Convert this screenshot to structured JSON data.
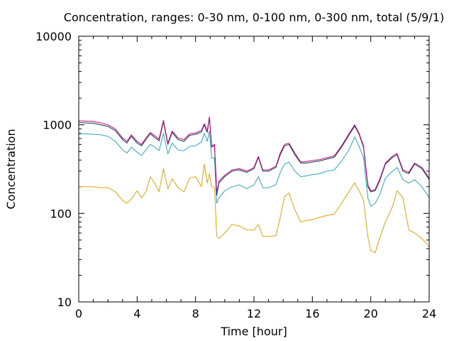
{
  "chart_data": {
    "type": "line",
    "title": "Concentration, ranges: 0-30 nm, 0-100 nm, 0-300 nm, total (5/9/1)",
    "xlabel": "Time [hour]",
    "ylabel": "Concentration",
    "xlim": [
      0,
      24
    ],
    "ylim": [
      10,
      10000
    ],
    "yscale": "log",
    "grid": false,
    "xticks": [
      "0",
      "4",
      "8",
      "12",
      "16",
      "20",
      "24"
    ],
    "yticks": [
      "10",
      "100",
      "1000",
      "10000"
    ],
    "colors": {
      "range_0_30": "#e5a00d",
      "range_0_100": "#2ca5c8",
      "range_0_300": "#0b3b4f",
      "total": "#c8007c",
      "axis": "#000000"
    },
    "series": [
      {
        "key": "range_0_30",
        "color": "#e5a00d",
        "x": [
          0,
          0.5,
          1,
          1.5,
          2,
          2.5,
          3,
          3.3,
          3.6,
          4,
          4.3,
          4.6,
          4.9,
          5.2,
          5.5,
          5.8,
          6.1,
          6.4,
          6.8,
          7.2,
          7.6,
          8,
          8.4,
          8.6,
          8.8,
          8.95,
          9.1,
          9.3,
          9.45,
          9.6,
          10,
          10.5,
          11,
          11.5,
          12,
          12.3,
          12.6,
          13,
          13.5,
          13.8,
          14.1,
          14.4,
          14.8,
          15.2,
          15.6,
          16,
          16.5,
          17,
          17.5,
          18,
          18.5,
          18.9,
          19.2,
          19.5,
          19.8,
          20,
          20.3,
          20.6,
          21,
          21.5,
          21.8,
          22.2,
          22.6,
          23,
          23.5,
          24
        ],
        "y": [
          200,
          200,
          200,
          195,
          195,
          175,
          140,
          130,
          145,
          180,
          150,
          175,
          260,
          220,
          175,
          320,
          190,
          245,
          195,
          175,
          250,
          260,
          200,
          360,
          220,
          280,
          200,
          195,
          55,
          52,
          60,
          75,
          72,
          65,
          65,
          75,
          55,
          55,
          56,
          90,
          155,
          170,
          110,
          80,
          83,
          85,
          90,
          95,
          98,
          130,
          175,
          222,
          180,
          140,
          55,
          38,
          36,
          52,
          80,
          120,
          180,
          150,
          65,
          60,
          52,
          42
        ]
      },
      {
        "key": "range_0_100",
        "color": "#2ca5c8",
        "x": [
          0,
          0.5,
          1,
          1.5,
          2,
          2.5,
          3,
          3.3,
          3.6,
          4,
          4.3,
          4.6,
          4.9,
          5.2,
          5.5,
          5.8,
          6.1,
          6.4,
          6.8,
          7.2,
          7.6,
          8,
          8.4,
          8.6,
          8.8,
          8.95,
          9.1,
          9.3,
          9.45,
          9.6,
          10,
          10.5,
          11,
          11.5,
          12,
          12.3,
          12.6,
          13,
          13.5,
          13.8,
          14.1,
          14.4,
          14.8,
          15.2,
          15.6,
          16,
          16.5,
          17,
          17.5,
          18,
          18.5,
          18.9,
          19.2,
          19.5,
          19.8,
          20,
          20.3,
          20.6,
          21,
          21.5,
          21.8,
          22.2,
          22.6,
          23,
          23.5,
          24
        ],
        "y": [
          790,
          790,
          780,
          770,
          740,
          650,
          520,
          480,
          560,
          490,
          450,
          520,
          600,
          560,
          510,
          800,
          470,
          620,
          520,
          510,
          570,
          580,
          640,
          800,
          650,
          850,
          420,
          420,
          130,
          150,
          180,
          200,
          210,
          190,
          210,
          260,
          195,
          195,
          210,
          290,
          360,
          380,
          300,
          260,
          265,
          275,
          280,
          300,
          310,
          390,
          520,
          730,
          570,
          430,
          150,
          120,
          130,
          160,
          250,
          300,
          330,
          240,
          220,
          240,
          200,
          150
        ]
      },
      {
        "key": "range_0_300",
        "color": "#0b3b4f",
        "x": [
          0,
          0.5,
          1,
          1.5,
          2,
          2.5,
          3,
          3.3,
          3.6,
          4,
          4.3,
          4.6,
          4.9,
          5.2,
          5.5,
          5.8,
          6.1,
          6.4,
          6.8,
          7.2,
          7.6,
          8,
          8.4,
          8.6,
          8.8,
          8.95,
          9.1,
          9.3,
          9.45,
          9.6,
          10,
          10.5,
          11,
          11.5,
          12,
          12.3,
          12.6,
          13,
          13.5,
          13.8,
          14.1,
          14.4,
          14.8,
          15.2,
          15.6,
          16,
          16.5,
          17,
          17.5,
          18,
          18.5,
          18.9,
          19.2,
          19.5,
          19.8,
          20,
          20.3,
          20.6,
          21,
          21.5,
          21.8,
          22.2,
          22.6,
          23,
          23.5,
          24
        ],
        "y": [
          1060,
          1050,
          1040,
          1000,
          960,
          860,
          680,
          620,
          740,
          620,
          580,
          680,
          790,
          720,
          660,
          1080,
          600,
          820,
          680,
          650,
          760,
          780,
          830,
          1000,
          820,
          1200,
          560,
          580,
          160,
          220,
          260,
          300,
          310,
          290,
          320,
          430,
          300,
          300,
          330,
          460,
          580,
          600,
          460,
          370,
          370,
          380,
          390,
          410,
          430,
          560,
          760,
          970,
          780,
          560,
          200,
          175,
          180,
          230,
          360,
          430,
          460,
          300,
          280,
          360,
          320,
          240
        ]
      },
      {
        "key": "total",
        "color": "#c8007c",
        "x": [
          0,
          0.5,
          1,
          1.5,
          2,
          2.5,
          3,
          3.3,
          3.6,
          4,
          4.3,
          4.6,
          4.9,
          5.2,
          5.5,
          5.8,
          6.1,
          6.4,
          6.8,
          7.2,
          7.6,
          8,
          8.4,
          8.6,
          8.8,
          8.95,
          9.1,
          9.3,
          9.45,
          9.6,
          10,
          10.5,
          11,
          11.5,
          12,
          12.3,
          12.6,
          13,
          13.5,
          13.8,
          14.1,
          14.4,
          14.8,
          15.2,
          15.6,
          16,
          16.5,
          17,
          17.5,
          18,
          18.5,
          18.9,
          19.2,
          19.5,
          19.8,
          20,
          20.3,
          20.6,
          21,
          21.5,
          21.8,
          22.2,
          22.6,
          23,
          23.5,
          24
        ],
        "y": [
          1110,
          1100,
          1090,
          1050,
          1000,
          900,
          710,
          650,
          770,
          650,
          600,
          710,
          820,
          750,
          690,
          1120,
          620,
          850,
          710,
          680,
          790,
          810,
          860,
          1030,
          850,
          1230,
          580,
          600,
          170,
          230,
          270,
          310,
          320,
          300,
          330,
          440,
          310,
          310,
          340,
          480,
          600,
          620,
          480,
          380,
          385,
          395,
          405,
          425,
          445,
          580,
          790,
          1000,
          800,
          580,
          210,
          180,
          185,
          240,
          370,
          445,
          475,
          310,
          290,
          370,
          330,
          250
        ]
      }
    ]
  }
}
